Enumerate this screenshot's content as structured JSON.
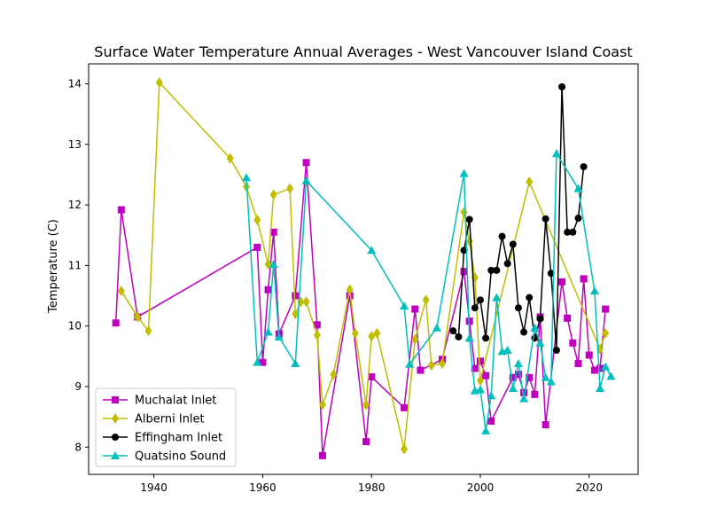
{
  "chart_data": {
    "type": "line",
    "title": "Surface Water Temperature Annual Averages - West Vancouver Island Coast",
    "xlabel": "",
    "ylabel": "Temperature (C)",
    "xlim": [
      1928,
      2029
    ],
    "ylim": [
      7.55,
      14.33
    ],
    "xticks": [
      1940,
      1960,
      1980,
      2000,
      2020
    ],
    "yticks": [
      8,
      9,
      10,
      11,
      12,
      13,
      14
    ],
    "grid": false,
    "legend_position": "lower-left",
    "series": [
      {
        "name": "Muchalat Inlet",
        "color": "#bf00bf",
        "marker": "square",
        "points": [
          [
            1933,
            10.05
          ],
          [
            1934,
            11.92
          ],
          [
            1937,
            10.15
          ],
          [
            1959,
            11.3
          ],
          [
            1960,
            9.4
          ],
          [
            1961,
            10.6
          ],
          [
            1962,
            11.55
          ],
          [
            1963,
            9.87
          ],
          [
            1966,
            10.5
          ],
          [
            1968,
            12.7
          ],
          [
            1970,
            10.02
          ],
          [
            1971,
            7.86
          ],
          [
            1976,
            10.5
          ],
          [
            1979,
            8.09
          ],
          [
            1980,
            9.16
          ],
          [
            1986,
            8.65
          ],
          [
            1988,
            10.28
          ],
          [
            1989,
            9.27
          ],
          [
            1993,
            9.45
          ],
          [
            1997,
            10.9
          ],
          [
            1998,
            10.08
          ],
          [
            1999,
            9.3
          ],
          [
            2000,
            9.42
          ],
          [
            2001,
            9.18
          ],
          [
            2002,
            8.43
          ],
          [
            2006,
            9.15
          ],
          [
            2007,
            9.2
          ],
          [
            2008,
            8.9
          ],
          [
            2009,
            9.15
          ],
          [
            2010,
            8.87
          ],
          [
            2011,
            10.15
          ],
          [
            2012,
            8.37
          ],
          [
            2015,
            10.73
          ],
          [
            2016,
            10.13
          ],
          [
            2017,
            9.72
          ],
          [
            2018,
            9.38
          ],
          [
            2019,
            10.78
          ],
          [
            2020,
            9.52
          ],
          [
            2021,
            9.27
          ],
          [
            2022,
            9.3
          ],
          [
            2023,
            10.28
          ]
        ]
      },
      {
        "name": "Alberni Inlet",
        "color": "#bfbf00",
        "marker": "diamond",
        "points": [
          [
            1934,
            10.58
          ],
          [
            1937,
            10.15
          ],
          [
            1939,
            9.92
          ],
          [
            1941,
            14.02
          ],
          [
            1954,
            12.77
          ],
          [
            1957,
            12.3
          ],
          [
            1959,
            11.75
          ],
          [
            1961,
            11.02
          ],
          [
            1962,
            12.17
          ],
          [
            1965,
            12.27
          ],
          [
            1966,
            10.2
          ],
          [
            1967,
            10.4
          ],
          [
            1968,
            10.4
          ],
          [
            1970,
            9.85
          ],
          [
            1971,
            8.7
          ],
          [
            1973,
            9.2
          ],
          [
            1976,
            10.6
          ],
          [
            1977,
            9.88
          ],
          [
            1979,
            8.7
          ],
          [
            1980,
            9.83
          ],
          [
            1981,
            9.88
          ],
          [
            1986,
            7.97
          ],
          [
            1988,
            9.78
          ],
          [
            1990,
            10.43
          ],
          [
            1991,
            9.35
          ],
          [
            1993,
            9.38
          ],
          [
            1997,
            11.88
          ],
          [
            1998,
            11.4
          ],
          [
            1999,
            10.8
          ],
          [
            2000,
            9.1
          ],
          [
            2009,
            12.38
          ],
          [
            2022,
            9.62
          ],
          [
            2023,
            9.88
          ]
        ]
      },
      {
        "name": "Effingham Inlet",
        "color": "#000000",
        "marker": "circle",
        "points": [
          [
            1995,
            9.92
          ],
          [
            1996,
            9.82
          ],
          [
            1997,
            11.25
          ],
          [
            1998,
            11.76
          ],
          [
            1999,
            10.3
          ],
          [
            2000,
            10.43
          ],
          [
            2001,
            9.8
          ],
          [
            2002,
            10.92
          ],
          [
            2003,
            10.92
          ],
          [
            2004,
            11.48
          ],
          [
            2005,
            11.03
          ],
          [
            2006,
            11.35
          ],
          [
            2007,
            10.3
          ],
          [
            2008,
            9.9
          ],
          [
            2009,
            10.47
          ],
          [
            2010,
            9.8
          ],
          [
            2011,
            10.12
          ],
          [
            2012,
            11.77
          ],
          [
            2013,
            10.87
          ],
          [
            2014,
            9.6
          ],
          [
            2015,
            13.95
          ],
          [
            2016,
            11.55
          ],
          [
            2017,
            11.55
          ],
          [
            2018,
            11.78
          ],
          [
            2019,
            12.63
          ]
        ]
      },
      {
        "name": "Quatsino Sound",
        "color": "#00bfbf",
        "marker": "triangle",
        "points": [
          [
            1957,
            12.45
          ],
          [
            1959,
            9.4
          ],
          [
            1961,
            9.9
          ],
          [
            1962,
            11.02
          ],
          [
            1963,
            9.82
          ],
          [
            1966,
            9.38
          ],
          [
            1968,
            12.4
          ],
          [
            1980,
            11.25
          ],
          [
            1986,
            10.33
          ],
          [
            1987,
            9.37
          ],
          [
            1992,
            9.97
          ],
          [
            1997,
            12.52
          ],
          [
            1998,
            9.8
          ],
          [
            1999,
            8.93
          ],
          [
            2000,
            8.95
          ],
          [
            2001,
            8.27
          ],
          [
            2002,
            8.85
          ],
          [
            2003,
            10.47
          ],
          [
            2004,
            9.58
          ],
          [
            2005,
            9.6
          ],
          [
            2006,
            8.97
          ],
          [
            2007,
            9.38
          ],
          [
            2008,
            8.8
          ],
          [
            2010,
            9.97
          ],
          [
            2011,
            9.72
          ],
          [
            2012,
            9.15
          ],
          [
            2013,
            9.08
          ],
          [
            2014,
            12.85
          ],
          [
            2018,
            12.27
          ],
          [
            2021,
            10.58
          ],
          [
            2022,
            8.97
          ],
          [
            2023,
            9.33
          ],
          [
            2024,
            9.17
          ]
        ]
      }
    ]
  }
}
